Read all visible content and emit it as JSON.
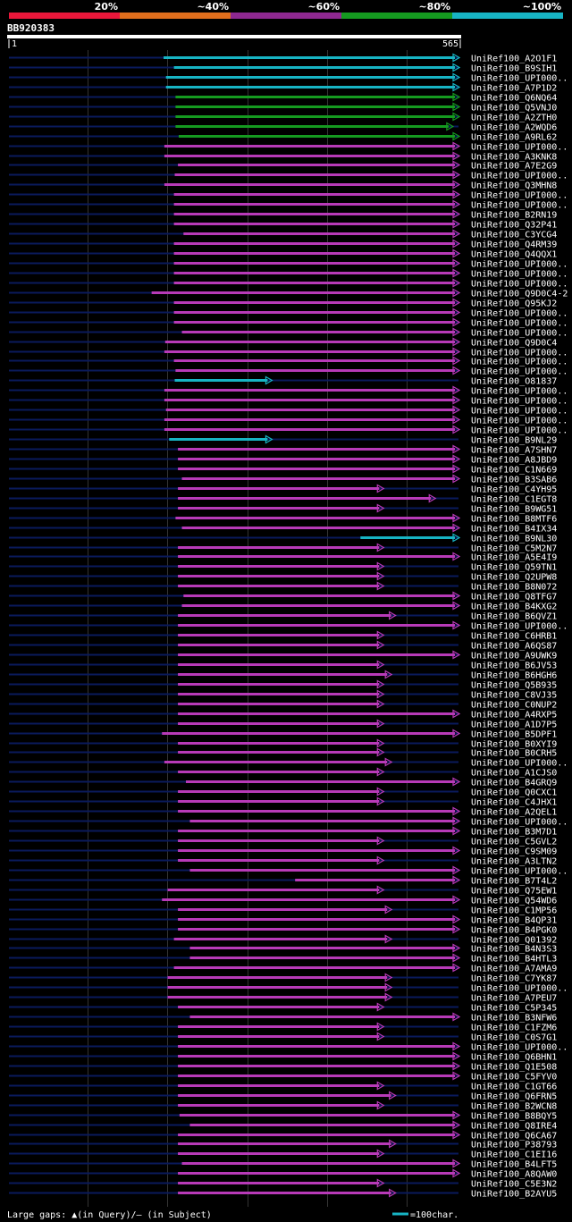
{
  "chart_data": {
    "type": "alignment",
    "title": "BB920383",
    "query_length": 565,
    "axis": {
      "start_label": "1",
      "end_label": "565",
      "range": [
        1,
        565
      ]
    },
    "legend": {
      "bins": [
        {
          "label": "20%",
          "color": "#e8173a"
        },
        {
          "label": "~40%",
          "color": "#e06e1c"
        },
        {
          "label": "~60%",
          "color": "#8e2890"
        },
        {
          "label": "~80%",
          "color": "#159a20"
        },
        {
          "label": "~100%",
          "color": "#17b4c4"
        }
      ]
    },
    "colors": {
      "identity_80_100": "#17b4c4",
      "identity_60_80": "#159a20",
      "identity_40_60": "#b83ab8",
      "background_line": "#0a1a5c"
    },
    "footer": {
      "gaps_text": "Large gaps: ▲(in Query)/— (in Subject)",
      "scale_text": "=100char."
    },
    "hits": [
      {
        "id": "UniRef100_A2O1F1",
        "start": 195,
        "end": 565,
        "color": "cyan"
      },
      {
        "id": "UniRef100_B9SIH1",
        "start": 208,
        "end": 565,
        "color": "cyan"
      },
      {
        "id": "UniRef100_UPI000..",
        "start": 198,
        "end": 565,
        "color": "cyan"
      },
      {
        "id": "UniRef100_A7P1D2",
        "start": 198,
        "end": 565,
        "color": "cyan"
      },
      {
        "id": "UniRef100_Q6NQ64",
        "start": 210,
        "end": 565,
        "color": "green"
      },
      {
        "id": "UniRef100_Q5VNJ0",
        "start": 210,
        "end": 565,
        "color": "green"
      },
      {
        "id": "UniRef100_A2ZTH0",
        "start": 210,
        "end": 565,
        "color": "green"
      },
      {
        "id": "UniRef100_A2WQD6",
        "start": 210,
        "end": 557,
        "color": "green"
      },
      {
        "id": "UniRef100_A9RL62",
        "start": 214,
        "end": 565,
        "color": "green"
      },
      {
        "id": "UniRef100_UPI000..",
        "start": 196,
        "end": 565,
        "color": "magenta"
      },
      {
        "id": "UniRef100_A3KNK8",
        "start": 196,
        "end": 565,
        "color": "magenta"
      },
      {
        "id": "UniRef100_A7E2G9",
        "start": 213,
        "end": 565,
        "color": "magenta"
      },
      {
        "id": "UniRef100_UPI000..",
        "start": 209,
        "end": 565,
        "color": "magenta"
      },
      {
        "id": "UniRef100_Q3MHN8",
        "start": 196,
        "end": 565,
        "color": "magenta"
      },
      {
        "id": "UniRef100_UPI000..",
        "start": 208,
        "end": 565,
        "color": "magenta"
      },
      {
        "id": "UniRef100_UPI000..",
        "start": 208,
        "end": 565,
        "color": "magenta"
      },
      {
        "id": "UniRef100_B2RN19",
        "start": 208,
        "end": 565,
        "color": "magenta"
      },
      {
        "id": "UniRef100_Q32P41",
        "start": 208,
        "end": 565,
        "color": "magenta"
      },
      {
        "id": "UniRef100_C3YCG4",
        "start": 220,
        "end": 565,
        "color": "magenta"
      },
      {
        "id": "UniRef100_Q4RM39",
        "start": 208,
        "end": 565,
        "color": "magenta"
      },
      {
        "id": "UniRef100_Q4QQX1",
        "start": 208,
        "end": 565,
        "color": "magenta"
      },
      {
        "id": "UniRef100_UPI000..",
        "start": 208,
        "end": 565,
        "color": "magenta"
      },
      {
        "id": "UniRef100_UPI000..",
        "start": 208,
        "end": 565,
        "color": "magenta"
      },
      {
        "id": "UniRef100_UPI000..",
        "start": 208,
        "end": 565,
        "color": "magenta"
      },
      {
        "id": "UniRef100_Q9D0C4-2",
        "start": 180,
        "end": 565,
        "color": "magenta"
      },
      {
        "id": "UniRef100_Q95KJ2",
        "start": 208,
        "end": 565,
        "color": "magenta"
      },
      {
        "id": "UniRef100_UPI000..",
        "start": 208,
        "end": 565,
        "color": "magenta"
      },
      {
        "id": "UniRef100_UPI000..",
        "start": 208,
        "end": 565,
        "color": "magenta"
      },
      {
        "id": "UniRef100_UPI000..",
        "start": 218,
        "end": 565,
        "color": "magenta"
      },
      {
        "id": "UniRef100_Q9D0C4",
        "start": 197,
        "end": 565,
        "color": "magenta"
      },
      {
        "id": "UniRef100_UPI000..",
        "start": 196,
        "end": 565,
        "color": "magenta"
      },
      {
        "id": "UniRef100_UPI000..",
        "start": 208,
        "end": 565,
        "color": "magenta"
      },
      {
        "id": "UniRef100_UPI000..",
        "start": 210,
        "end": 565,
        "color": "magenta"
      },
      {
        "id": "UniRef100_O81837",
        "start": 209,
        "end": 330,
        "color": "cyan"
      },
      {
        "id": "UniRef100_UPI000..",
        "start": 196,
        "end": 565,
        "color": "magenta"
      },
      {
        "id": "UniRef100_UPI000..",
        "start": 196,
        "end": 565,
        "color": "magenta"
      },
      {
        "id": "UniRef100_UPI000..",
        "start": 198,
        "end": 565,
        "color": "magenta"
      },
      {
        "id": "UniRef100_UPI000..",
        "start": 196,
        "end": 565,
        "color": "magenta"
      },
      {
        "id": "UniRef100_UPI000..",
        "start": 196,
        "end": 565,
        "color": "magenta"
      },
      {
        "id": "UniRef100_B9NL29",
        "start": 202,
        "end": 330,
        "color": "cyan"
      },
      {
        "id": "UniRef100_A7SHN7",
        "start": 213,
        "end": 565,
        "color": "magenta"
      },
      {
        "id": "UniRef100_A8JBD9",
        "start": 213,
        "end": 565,
        "color": "magenta"
      },
      {
        "id": "UniRef100_C1N669",
        "start": 213,
        "end": 565,
        "color": "magenta"
      },
      {
        "id": "UniRef100_B3SAB6",
        "start": 218,
        "end": 565,
        "color": "magenta"
      },
      {
        "id": "UniRef100_C4YH95",
        "start": 213,
        "end": 470,
        "color": "magenta"
      },
      {
        "id": "UniRef100_C1EGT8",
        "start": 213,
        "end": 535,
        "color": "magenta"
      },
      {
        "id": "UniRef100_B9WG51",
        "start": 213,
        "end": 470,
        "color": "magenta"
      },
      {
        "id": "UniRef100_B8MTF6",
        "start": 210,
        "end": 565,
        "color": "magenta"
      },
      {
        "id": "UniRef100_B4IX34",
        "start": 218,
        "end": 565,
        "color": "magenta"
      },
      {
        "id": "UniRef100_B9NL30",
        "start": 442,
        "end": 565,
        "color": "cyan"
      },
      {
        "id": "UniRef100_C5M2N7",
        "start": 213,
        "end": 470,
        "color": "magenta"
      },
      {
        "id": "UniRef100_A5E4I9",
        "start": 213,
        "end": 565,
        "color": "magenta"
      },
      {
        "id": "UniRef100_Q59TN1",
        "start": 213,
        "end": 470,
        "color": "magenta"
      },
      {
        "id": "UniRef100_Q2UPW8",
        "start": 213,
        "end": 470,
        "color": "magenta"
      },
      {
        "id": "UniRef100_B8N072",
        "start": 213,
        "end": 470,
        "color": "magenta"
      },
      {
        "id": "UniRef100_Q8TFG7",
        "start": 220,
        "end": 565,
        "color": "magenta"
      },
      {
        "id": "UniRef100_B4KXG2",
        "start": 218,
        "end": 565,
        "color": "magenta"
      },
      {
        "id": "UniRef100_B6QVZ1",
        "start": 213,
        "end": 485,
        "color": "magenta"
      },
      {
        "id": "UniRef100_UPI000..",
        "start": 213,
        "end": 565,
        "color": "magenta"
      },
      {
        "id": "UniRef100_C6HRB1",
        "start": 213,
        "end": 470,
        "color": "magenta"
      },
      {
        "id": "UniRef100_A6QS87",
        "start": 213,
        "end": 470,
        "color": "magenta"
      },
      {
        "id": "UniRef100_A9UWK9",
        "start": 213,
        "end": 565,
        "color": "magenta"
      },
      {
        "id": "UniRef100_B6JV53",
        "start": 213,
        "end": 470,
        "color": "magenta"
      },
      {
        "id": "UniRef100_B6HGH6",
        "start": 213,
        "end": 480,
        "color": "magenta"
      },
      {
        "id": "UniRef100_Q5B935",
        "start": 213,
        "end": 470,
        "color": "magenta"
      },
      {
        "id": "UniRef100_C8VJ35",
        "start": 213,
        "end": 470,
        "color": "magenta"
      },
      {
        "id": "UniRef100_C0NUP2",
        "start": 213,
        "end": 470,
        "color": "magenta"
      },
      {
        "id": "UniRef100_A4RXP5",
        "start": 213,
        "end": 565,
        "color": "magenta"
      },
      {
        "id": "UniRef100_A1D7P5",
        "start": 213,
        "end": 470,
        "color": "magenta"
      },
      {
        "id": "UniRef100_B5DPF1",
        "start": 193,
        "end": 565,
        "color": "magenta"
      },
      {
        "id": "UniRef100_B0XYI9",
        "start": 213,
        "end": 470,
        "color": "magenta"
      },
      {
        "id": "UniRef100_B0CRH5",
        "start": 213,
        "end": 470,
        "color": "magenta"
      },
      {
        "id": "UniRef100_UPI000..",
        "start": 196,
        "end": 480,
        "color": "magenta"
      },
      {
        "id": "UniRef100_A1CJS0",
        "start": 213,
        "end": 470,
        "color": "magenta"
      },
      {
        "id": "UniRef100_B4GRQ9",
        "start": 223,
        "end": 565,
        "color": "magenta"
      },
      {
        "id": "UniRef100_Q0CXC1",
        "start": 213,
        "end": 470,
        "color": "magenta"
      },
      {
        "id": "UniRef100_C4JHX1",
        "start": 213,
        "end": 470,
        "color": "magenta"
      },
      {
        "id": "UniRef100_A2QEL1",
        "start": 213,
        "end": 565,
        "color": "magenta"
      },
      {
        "id": "UniRef100_UPI000..",
        "start": 228,
        "end": 565,
        "color": "magenta"
      },
      {
        "id": "UniRef100_B3M7D1",
        "start": 213,
        "end": 565,
        "color": "magenta"
      },
      {
        "id": "UniRef100_C5GVL2",
        "start": 213,
        "end": 470,
        "color": "magenta"
      },
      {
        "id": "UniRef100_C9SM09",
        "start": 213,
        "end": 565,
        "color": "magenta"
      },
      {
        "id": "UniRef100_A3LTN2",
        "start": 213,
        "end": 470,
        "color": "magenta"
      },
      {
        "id": "UniRef100_UPI000..",
        "start": 228,
        "end": 565,
        "color": "magenta"
      },
      {
        "id": "UniRef100_B7T4L2",
        "start": 360,
        "end": 565,
        "color": "magenta"
      },
      {
        "id": "UniRef100_Q75EW1",
        "start": 200,
        "end": 470,
        "color": "magenta"
      },
      {
        "id": "UniRef100_Q54WD6",
        "start": 193,
        "end": 565,
        "color": "magenta"
      },
      {
        "id": "UniRef100_C1MP56",
        "start": 213,
        "end": 480,
        "color": "magenta"
      },
      {
        "id": "UniRef100_B4QP31",
        "start": 213,
        "end": 565,
        "color": "magenta"
      },
      {
        "id": "UniRef100_B4PGK0",
        "start": 213,
        "end": 565,
        "color": "magenta"
      },
      {
        "id": "UniRef100_Q01392",
        "start": 208,
        "end": 480,
        "color": "magenta"
      },
      {
        "id": "UniRef100_B4N3S3",
        "start": 228,
        "end": 565,
        "color": "magenta"
      },
      {
        "id": "UniRef100_B4HTL3",
        "start": 228,
        "end": 565,
        "color": "magenta"
      },
      {
        "id": "UniRef100_A7AMA9",
        "start": 208,
        "end": 565,
        "color": "magenta"
      },
      {
        "id": "UniRef100_C7YK87",
        "start": 200,
        "end": 480,
        "color": "magenta"
      },
      {
        "id": "UniRef100_UPI000..",
        "start": 200,
        "end": 480,
        "color": "magenta"
      },
      {
        "id": "UniRef100_A7PEU7",
        "start": 200,
        "end": 480,
        "color": "magenta"
      },
      {
        "id": "UniRef100_C5P345",
        "start": 213,
        "end": 470,
        "color": "magenta"
      },
      {
        "id": "UniRef100_B3NFW6",
        "start": 228,
        "end": 565,
        "color": "magenta"
      },
      {
        "id": "UniRef100_C1FZM6",
        "start": 213,
        "end": 470,
        "color": "magenta"
      },
      {
        "id": "UniRef100_C0S7G1",
        "start": 213,
        "end": 470,
        "color": "magenta"
      },
      {
        "id": "UniRef100_UPI000..",
        "start": 213,
        "end": 565,
        "color": "magenta"
      },
      {
        "id": "UniRef100_Q6BHN1",
        "start": 213,
        "end": 565,
        "color": "magenta"
      },
      {
        "id": "UniRef100_Q1E508",
        "start": 213,
        "end": 565,
        "color": "magenta"
      },
      {
        "id": "UniRef100_C5FYV0",
        "start": 213,
        "end": 565,
        "color": "magenta"
      },
      {
        "id": "UniRef100_C1GT66",
        "start": 213,
        "end": 470,
        "color": "magenta"
      },
      {
        "id": "UniRef100_Q6FRN5",
        "start": 213,
        "end": 485,
        "color": "magenta"
      },
      {
        "id": "UniRef100_B2WCN8",
        "start": 213,
        "end": 470,
        "color": "magenta"
      },
      {
        "id": "UniRef100_B8BQY5",
        "start": 215,
        "end": 565,
        "color": "magenta"
      },
      {
        "id": "UniRef100_Q8IRE4",
        "start": 228,
        "end": 565,
        "color": "magenta"
      },
      {
        "id": "UniRef100_Q6CA67",
        "start": 213,
        "end": 565,
        "color": "magenta"
      },
      {
        "id": "UniRef100_P38793",
        "start": 213,
        "end": 485,
        "color": "magenta"
      },
      {
        "id": "UniRef100_C1EI16",
        "start": 213,
        "end": 470,
        "color": "magenta"
      },
      {
        "id": "UniRef100_B4LFT5",
        "start": 218,
        "end": 565,
        "color": "magenta"
      },
      {
        "id": "UniRef100_A8QAW0",
        "start": 213,
        "end": 565,
        "color": "magenta"
      },
      {
        "id": "UniRef100_C5E3N2",
        "start": 213,
        "end": 470,
        "color": "magenta"
      },
      {
        "id": "UniRef100_B2AYU5",
        "start": 213,
        "end": 485,
        "color": "magenta"
      }
    ]
  }
}
